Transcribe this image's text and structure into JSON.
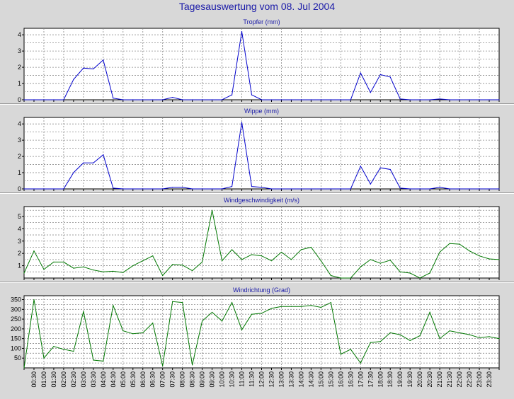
{
  "page_title": "Tagesauswertung vom 08. Jul 2004",
  "colors": {
    "blue_series": "#0000cc",
    "green_series": "#007700",
    "title": "#1a1aa8",
    "background": "#d8d8d8"
  },
  "x_tick_labels": [
    "00:30",
    "01:00",
    "01:30",
    "02:00",
    "02:30",
    "03:00",
    "03:30",
    "04:00",
    "04:30",
    "05:00",
    "05:30",
    "06:00",
    "06:30",
    "07:00",
    "07:30",
    "08:00",
    "08:30",
    "09:00",
    "09:30",
    "10:00",
    "10:30",
    "11:00",
    "11:30",
    "12:00",
    "12:30",
    "13:00",
    "13:30",
    "14:00",
    "14:30",
    "15:00",
    "15:30",
    "16:00",
    "16:30",
    "17:00",
    "17:30",
    "18:00",
    "18:30",
    "19:00",
    "19:30",
    "20:00",
    "20:30",
    "21:00",
    "21:30",
    "22:00",
    "22:30",
    "23:00",
    "23:30"
  ],
  "chart_data": [
    {
      "type": "line",
      "title": "Tropfer (mm)",
      "x_unit": "time of day (half-hour steps)",
      "ylim": [
        0,
        4.4
      ],
      "yticks": [
        0,
        1,
        2,
        3,
        4
      ],
      "grid": true,
      "series": [
        {
          "values": [
            0,
            0,
            0,
            0,
            0,
            1.25,
            1.95,
            1.9,
            2.45,
            0.1,
            0,
            0,
            0,
            0,
            0,
            0.15,
            0,
            0,
            0,
            0,
            0,
            0.3,
            4.2,
            0.3,
            0,
            0,
            0,
            0,
            0,
            0,
            0,
            0,
            0,
            0,
            1.65,
            0.45,
            1.55,
            1.4,
            0.05,
            0,
            0,
            0,
            0.05,
            0,
            0,
            0,
            0,
            0,
            0
          ]
        }
      ]
    },
    {
      "type": "line",
      "title": "Wippe (mm)",
      "ylim": [
        0,
        4.4
      ],
      "yticks": [
        0,
        1,
        2,
        3,
        4
      ],
      "grid": true,
      "series": [
        {
          "values": [
            0,
            0,
            0,
            0,
            0,
            1.0,
            1.6,
            1.6,
            2.1,
            0.05,
            0,
            0,
            0,
            0,
            0,
            0.1,
            0.1,
            0,
            0,
            0,
            0,
            0.15,
            4.1,
            0.15,
            0.1,
            0,
            0,
            0,
            0,
            0,
            0,
            0,
            0,
            0,
            1.4,
            0.3,
            1.3,
            1.2,
            0.05,
            0,
            0,
            0,
            0.1,
            0,
            0,
            0,
            0,
            0,
            0
          ]
        }
      ]
    },
    {
      "type": "line",
      "title": "Windgeschwindigkeit (m/s)",
      "ylim": [
        0,
        5.8
      ],
      "yticks": [
        1,
        2,
        3,
        4,
        5
      ],
      "grid": true,
      "series": [
        {
          "values": [
            0.4,
            2.2,
            0.7,
            1.3,
            1.3,
            0.8,
            0.9,
            0.65,
            0.5,
            0.55,
            0.45,
            1.0,
            1.4,
            1.8,
            0.2,
            1.1,
            1.05,
            0.6,
            1.3,
            5.5,
            1.4,
            2.3,
            1.5,
            1.9,
            1.8,
            1.4,
            2.1,
            1.5,
            2.3,
            2.5,
            1.4,
            0.2,
            0,
            0,
            0.9,
            1.5,
            1.2,
            1.45,
            0.5,
            0.4,
            0,
            0.4,
            2.1,
            2.8,
            2.75,
            2.2,
            1.8,
            1.55,
            1.5
          ]
        }
      ]
    },
    {
      "type": "line",
      "title": "Windrichtung (Grad)",
      "ylim": [
        0,
        370
      ],
      "yticks": [
        50,
        100,
        150,
        200,
        250,
        300,
        350
      ],
      "grid": true,
      "series": [
        {
          "values": [
            0,
            350,
            50,
            110,
            95,
            85,
            290,
            40,
            35,
            320,
            190,
            175,
            180,
            230,
            10,
            340,
            335,
            15,
            240,
            285,
            240,
            335,
            195,
            275,
            280,
            305,
            315,
            315,
            315,
            320,
            310,
            335,
            70,
            95,
            25,
            130,
            135,
            180,
            170,
            140,
            165,
            285,
            150,
            190,
            180,
            170,
            155,
            160,
            150
          ]
        }
      ]
    }
  ]
}
